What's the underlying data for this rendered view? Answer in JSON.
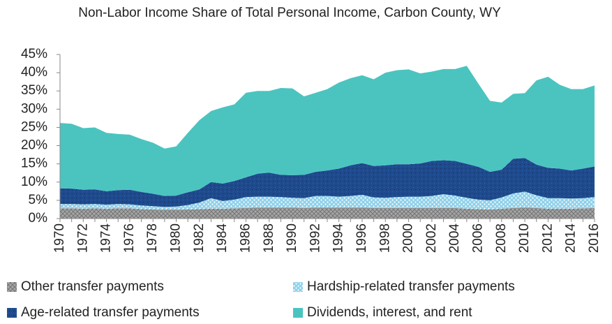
{
  "chart_data": {
    "type": "stacked-area",
    "title": "Non-Labor Income Share of Total Personal Income, Carbon County, WY",
    "categories": [
      "1970",
      null,
      "1972",
      null,
      "1974",
      null,
      "1976",
      null,
      "1978",
      null,
      "1980",
      null,
      "1982",
      null,
      "1984",
      null,
      "1986",
      null,
      "1988",
      null,
      "1990",
      null,
      "1992",
      null,
      "1994",
      null,
      "1996",
      null,
      "1998",
      null,
      "2000",
      null,
      "2002",
      null,
      "2004",
      null,
      "2006",
      null,
      "2008",
      null,
      "2010",
      null,
      "2012",
      null,
      "2014",
      null,
      "2016"
    ],
    "ylim": [
      0,
      45
    ],
    "yticks": [
      {
        "value": 0,
        "label": "0%"
      },
      {
        "value": 5,
        "label": "5%"
      },
      {
        "value": 10,
        "label": "10%"
      },
      {
        "value": 15,
        "label": "15%"
      },
      {
        "value": 20,
        "label": "20%"
      },
      {
        "value": 25,
        "label": "25%"
      },
      {
        "value": 30,
        "label": "30%"
      },
      {
        "value": 35,
        "label": "35%"
      },
      {
        "value": 40,
        "label": "40%"
      },
      {
        "value": 45,
        "label": "45%"
      }
    ],
    "legend": "bottom",
    "series": [
      {
        "name": "Other transfer payments",
        "color": "#a6a6a6",
        "pattern": "crosshatch",
        "values": [
          2.8,
          2.8,
          2.7,
          2.8,
          2.7,
          2.8,
          2.8,
          2.6,
          2.5,
          2.4,
          2.4,
          2.5,
          2.6,
          2.7,
          2.7,
          2.8,
          2.9,
          3.0,
          3.0,
          3.0,
          3.0,
          2.9,
          3.0,
          3.0,
          3.0,
          3.0,
          3.0,
          2.9,
          2.9,
          2.9,
          2.9,
          2.9,
          2.9,
          2.9,
          2.9,
          2.7,
          2.6,
          2.5,
          2.7,
          2.9,
          3.0,
          2.9,
          2.7,
          2.7,
          2.7,
          2.8,
          2.9
        ]
      },
      {
        "name": "Hardship-related transfer payments",
        "color": "#8fd1ea",
        "pattern": "dots",
        "values": [
          1.2,
          1.2,
          1.2,
          1.2,
          1.1,
          1.2,
          1.1,
          1.0,
          0.9,
          0.8,
          0.9,
          1.2,
          1.8,
          2.9,
          2.1,
          2.4,
          3.0,
          3.0,
          3.0,
          2.9,
          2.7,
          2.7,
          3.2,
          3.2,
          3.0,
          3.2,
          3.5,
          2.9,
          2.8,
          3.0,
          3.1,
          3.1,
          3.3,
          3.8,
          3.4,
          3.0,
          2.6,
          2.5,
          3.1,
          4.0,
          4.4,
          3.5,
          2.9,
          2.9,
          2.8,
          2.8,
          3.0
        ]
      },
      {
        "name": "Age-related transfer payments",
        "color": "#1f4a8c",
        "pattern": "grain",
        "values": [
          4.3,
          4.2,
          4.0,
          4.0,
          3.7,
          3.8,
          4.0,
          3.7,
          3.4,
          3.0,
          3.0,
          3.5,
          3.6,
          4.4,
          4.8,
          5.1,
          5.4,
          6.3,
          6.6,
          6.1,
          6.2,
          6.4,
          6.6,
          7.0,
          7.7,
          8.4,
          8.7,
          8.6,
          8.9,
          9.0,
          8.9,
          9.1,
          9.6,
          9.3,
          9.5,
          9.3,
          9.0,
          7.8,
          7.6,
          9.5,
          9.2,
          8.4,
          8.3,
          8.1,
          7.7,
          8.1,
          8.4
        ]
      },
      {
        "name": "Dividends, interest, and rent",
        "color": "#4bc4c0",
        "pattern": "solid",
        "values": [
          17.9,
          17.8,
          16.9,
          17.0,
          16.0,
          15.4,
          15.1,
          14.5,
          14.0,
          13.0,
          13.5,
          16.3,
          19.0,
          19.5,
          20.9,
          21.0,
          23.2,
          22.7,
          22.4,
          23.8,
          23.8,
          21.5,
          21.7,
          22.3,
          23.6,
          23.9,
          24.1,
          23.8,
          25.4,
          25.8,
          26.0,
          24.7,
          24.5,
          25.0,
          25.2,
          26.9,
          22.8,
          19.5,
          18.4,
          17.8,
          17.8,
          23.1,
          25.0,
          23.0,
          22.3,
          21.8,
          22.2
        ]
      }
    ]
  }
}
